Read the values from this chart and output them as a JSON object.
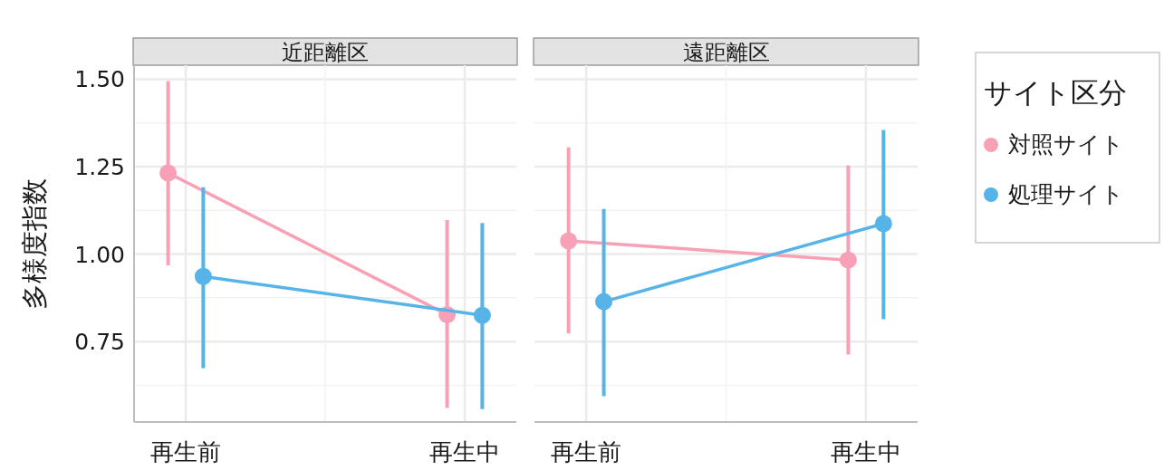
{
  "chart_data": [
    {
      "type": "line",
      "title": "近距離区",
      "ylabel": "多様度指数",
      "legend_title": "サイト区分",
      "categories": [
        "再生前",
        "再生中"
      ],
      "ylim": [
        0.52,
        1.54
      ],
      "yticks": [
        0.75,
        {
          "value": 1,
          "label": "1.00"
        },
        1.25,
        {
          "value": 1.5,
          "label": "1.50"
        }
      ],
      "grid": true,
      "marker": "circle",
      "line_style": "solid",
      "legend": "right",
      "series": [
        {
          "name": "対照サイト",
          "color": "#f8a1b6",
          "values": [
            1.232,
            0.827
          ],
          "errors": [
            [
              0.968,
              1.495
            ],
            [
              0.56,
              1.097
            ]
          ]
        },
        {
          "name": "処理サイト",
          "color": "#56b4e9",
          "values": [
            0.936,
            0.825
          ],
          "errors": [
            [
              0.674,
              1.191
            ],
            [
              0.557,
              1.089
            ]
          ]
        }
      ]
    },
    {
      "type": "line",
      "title": "遠距離区",
      "categories": [
        "再生前",
        "再生中"
      ],
      "ylim": [
        0.52,
        1.54
      ],
      "yticks": [
        0.75,
        1,
        1.25,
        1.5
      ],
      "tick_labels": "x",
      "grid": true,
      "marker": "circle",
      "line_style": "solid",
      "series": [
        {
          "color": "#f8a1b6",
          "values": [
            1.038,
            0.983
          ],
          "errors": [
            [
              0.773,
              1.305
            ],
            [
              0.713,
              1.253
            ]
          ]
        },
        {
          "color": "#56b4e9",
          "values": [
            0.864,
            1.087
          ],
          "errors": [
            [
              0.594,
              1.129
            ],
            [
              0.814,
              1.355
            ]
          ]
        }
      ]
    }
  ]
}
